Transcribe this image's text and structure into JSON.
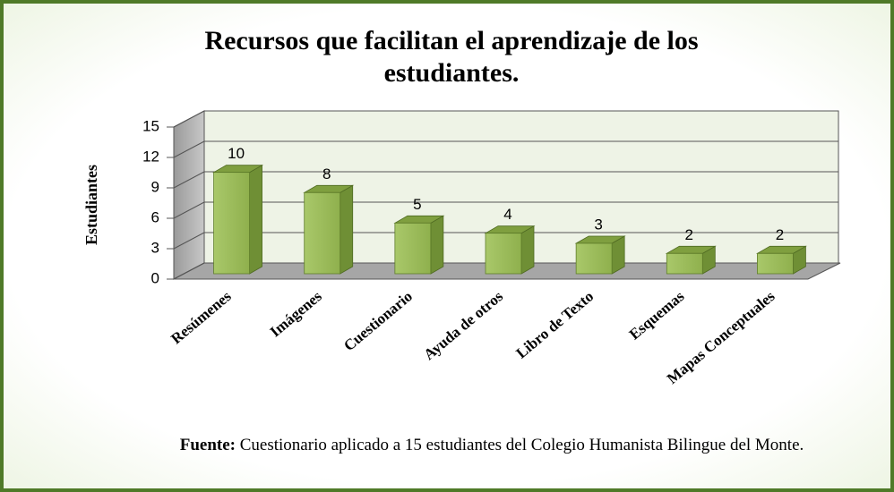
{
  "chart_data": {
    "type": "bar3d",
    "title": "Recursos que facilitan el aprendizaje de los estudiantes.",
    "y_label": "Estudiantes",
    "categories": [
      "Resúmenes",
      "Imágenes",
      "Cuestionario",
      "Ayuda de otros",
      "Libro de Texto",
      "Esquemas",
      "Mapas Conceptuales"
    ],
    "values": [
      10,
      8,
      5,
      4,
      3,
      2,
      2
    ],
    "color": "#9bbb59",
    "ylim": [
      0,
      15
    ],
    "yticks": [
      0,
      3,
      6,
      9,
      12,
      15
    ],
    "grid": true,
    "source_label": "Fuente:",
    "source": "Cuestionario aplicado a 15 estudiantes del Colegio Humanista Bilingue del Monte."
  }
}
